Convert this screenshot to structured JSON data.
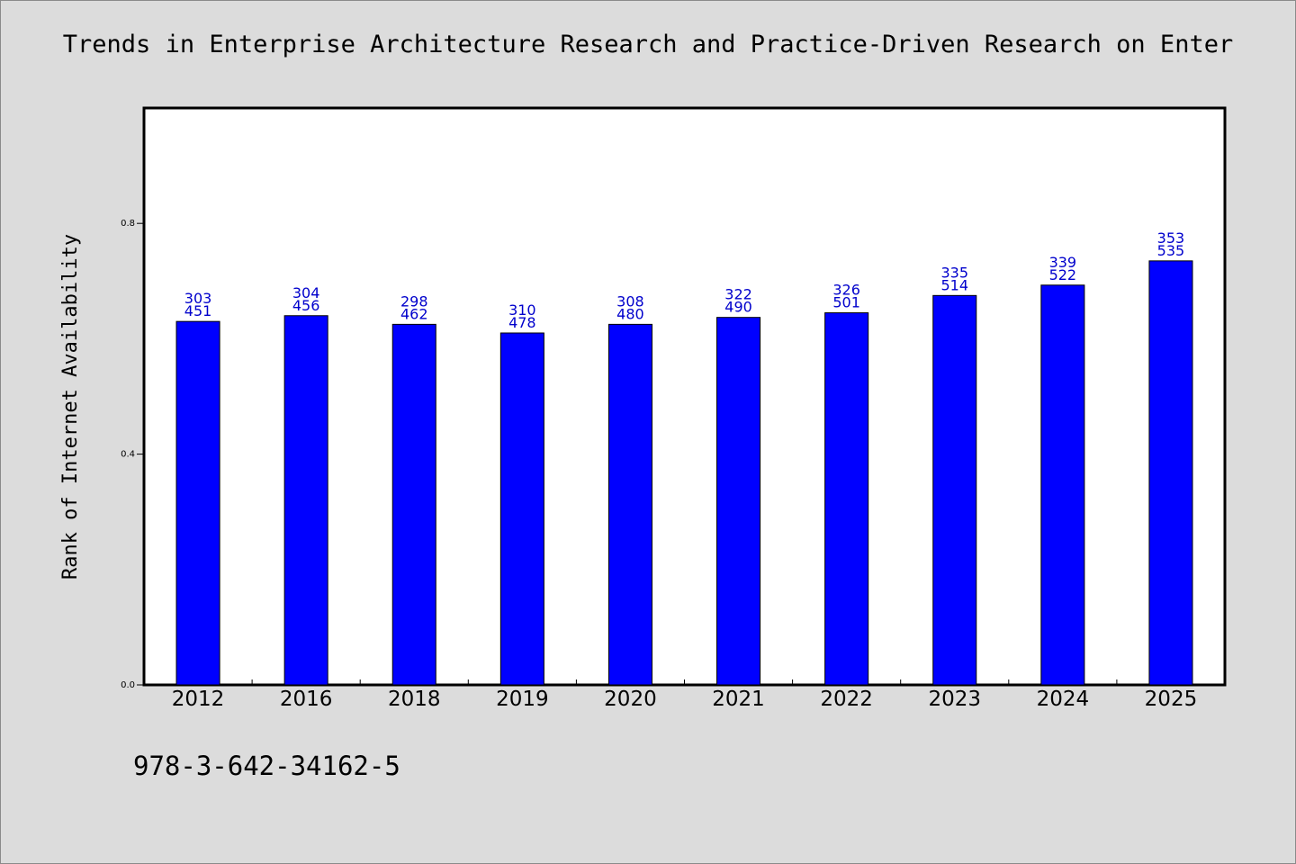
{
  "chart_data": {
    "type": "bar",
    "title": "Trends in Enterprise Architecture Research and Practice-Driven Research on Enter",
    "xlabel": "",
    "ylabel": "Rank of Internet Availability",
    "ylim": [
      0,
      1.0
    ],
    "yticks": [
      "0.0",
      "0.4",
      "0.8"
    ],
    "categories": [
      "2012",
      "2016",
      "2018",
      "2019",
      "2020",
      "2021",
      "2022",
      "2023",
      "2024",
      "2025"
    ],
    "values": [
      0.63,
      0.64,
      0.625,
      0.61,
      0.625,
      0.637,
      0.645,
      0.675,
      0.693,
      0.735
    ],
    "data_labels": [
      [
        "303",
        "451"
      ],
      [
        "304",
        "456"
      ],
      [
        "298",
        "462"
      ],
      [
        "310",
        "478"
      ],
      [
        "308",
        "480"
      ],
      [
        "322",
        "490"
      ],
      [
        "326",
        "501"
      ],
      [
        "335",
        "514"
      ],
      [
        "339",
        "522"
      ],
      [
        "353",
        "535"
      ]
    ],
    "bar_color": "#0000ff",
    "label_color": "#0000cc",
    "grid": false,
    "legend": "none"
  },
  "footer": {
    "isbn": "978-3-642-34162-5"
  }
}
